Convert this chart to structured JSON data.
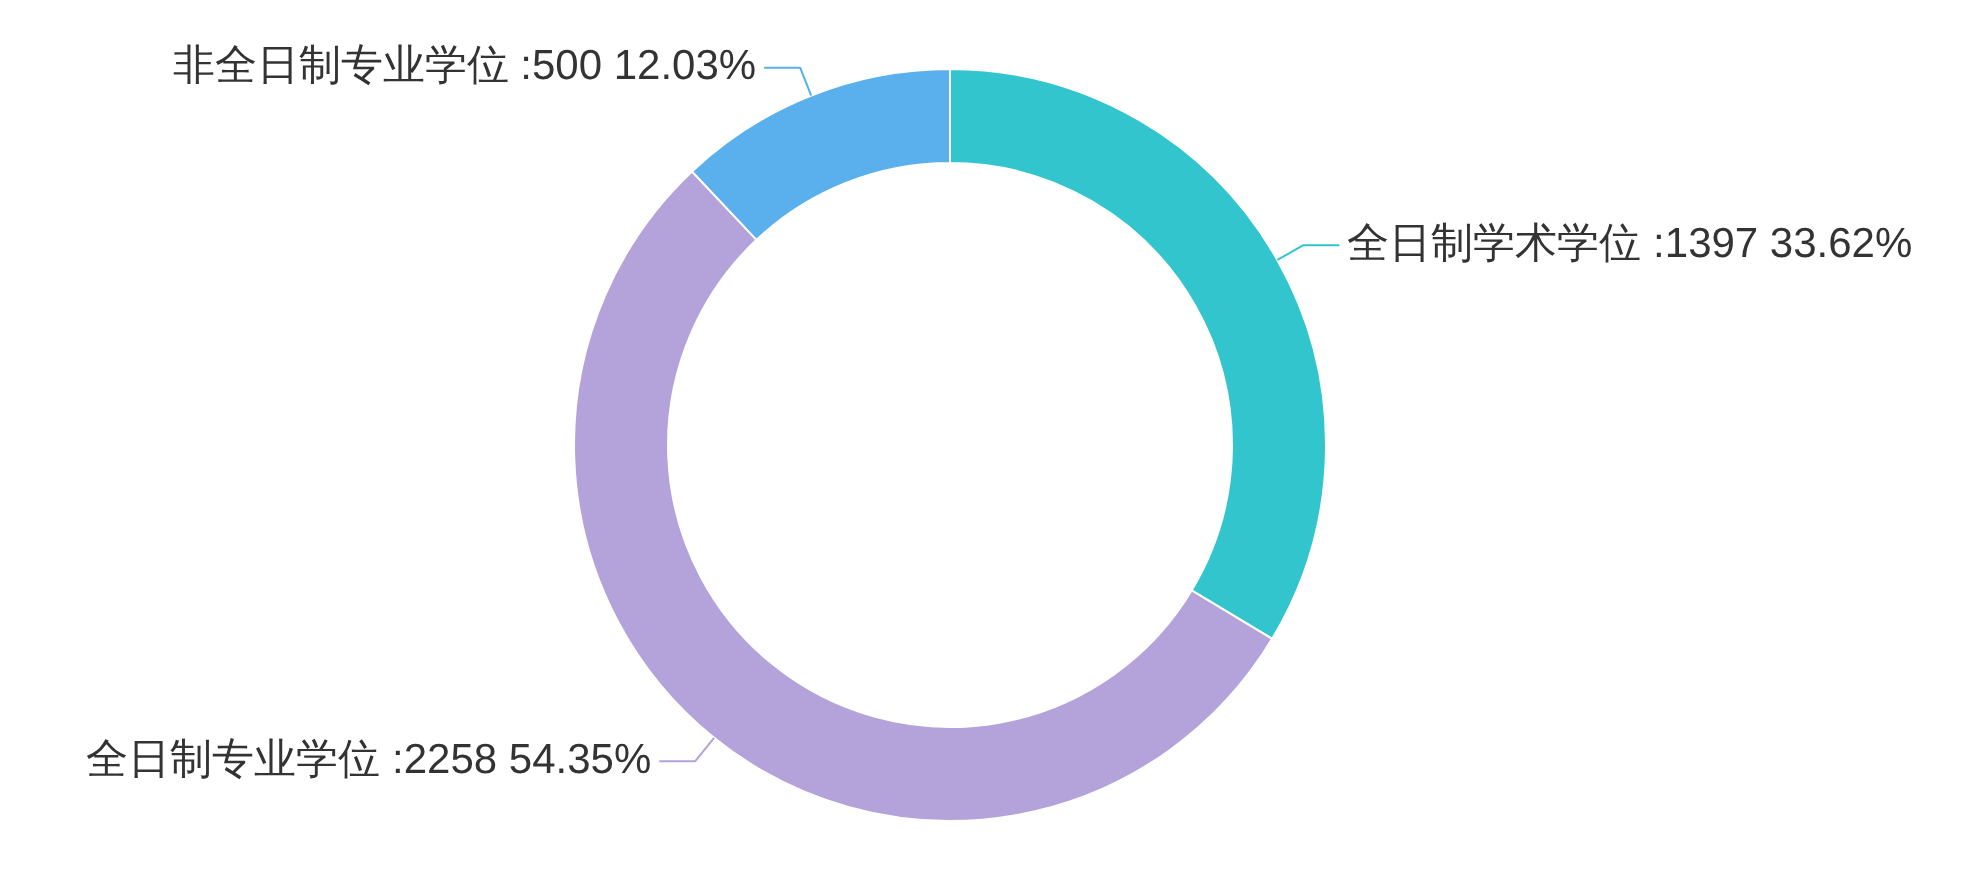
{
  "chart_data": {
    "type": "donut",
    "categories": [
      "全日制学术学位",
      "全日制专业学位",
      "非全日制专业学位"
    ],
    "values": [
      1397,
      2258,
      500
    ],
    "colors": [
      "#32c5cd",
      "#b4a2db",
      "#5ab0ec"
    ],
    "value_labels": [
      ":1397 33.62%",
      ":2258 54.35%",
      ":500 12.03%"
    ]
  }
}
